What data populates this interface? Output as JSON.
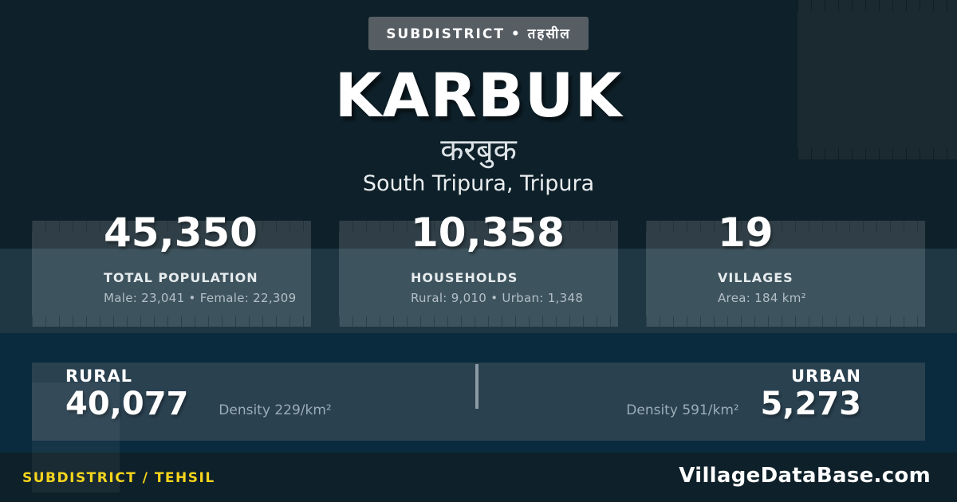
{
  "badge": {
    "label": "SUBDISTRICT • तहसील"
  },
  "title": {
    "name": "KARBUK",
    "native_name": "करबुक",
    "location": "South Tripura, Tripura"
  },
  "stats": [
    {
      "value": "45,350",
      "label": "TOTAL POPULATION",
      "detail": "Male: 23,041 • Female: 22,309"
    },
    {
      "value": "10,358",
      "label": "HOUSEHOLDS",
      "detail": "Rural: 9,010 • Urban: 1,348"
    },
    {
      "value": "19",
      "label": "VILLAGES",
      "detail": "Area: 184 km²"
    }
  ],
  "split": {
    "rural": {
      "label": "RURAL",
      "value": "40,077",
      "density": "Density 229/km²"
    },
    "urban": {
      "label": "URBAN",
      "value": "5,273",
      "density": "Density 591/km²"
    }
  },
  "footer": {
    "type_label": "SUBDISTRICT / TEHSIL",
    "brand": "VillageDataBase.com"
  },
  "colors": {
    "background": "#0e2029",
    "section_background": "#0a2b3d",
    "badge_background": "#565d63",
    "accent_yellow": "#f6d51c",
    "text_primary": "#ffffff",
    "text_muted": "#b3bfc7"
  }
}
